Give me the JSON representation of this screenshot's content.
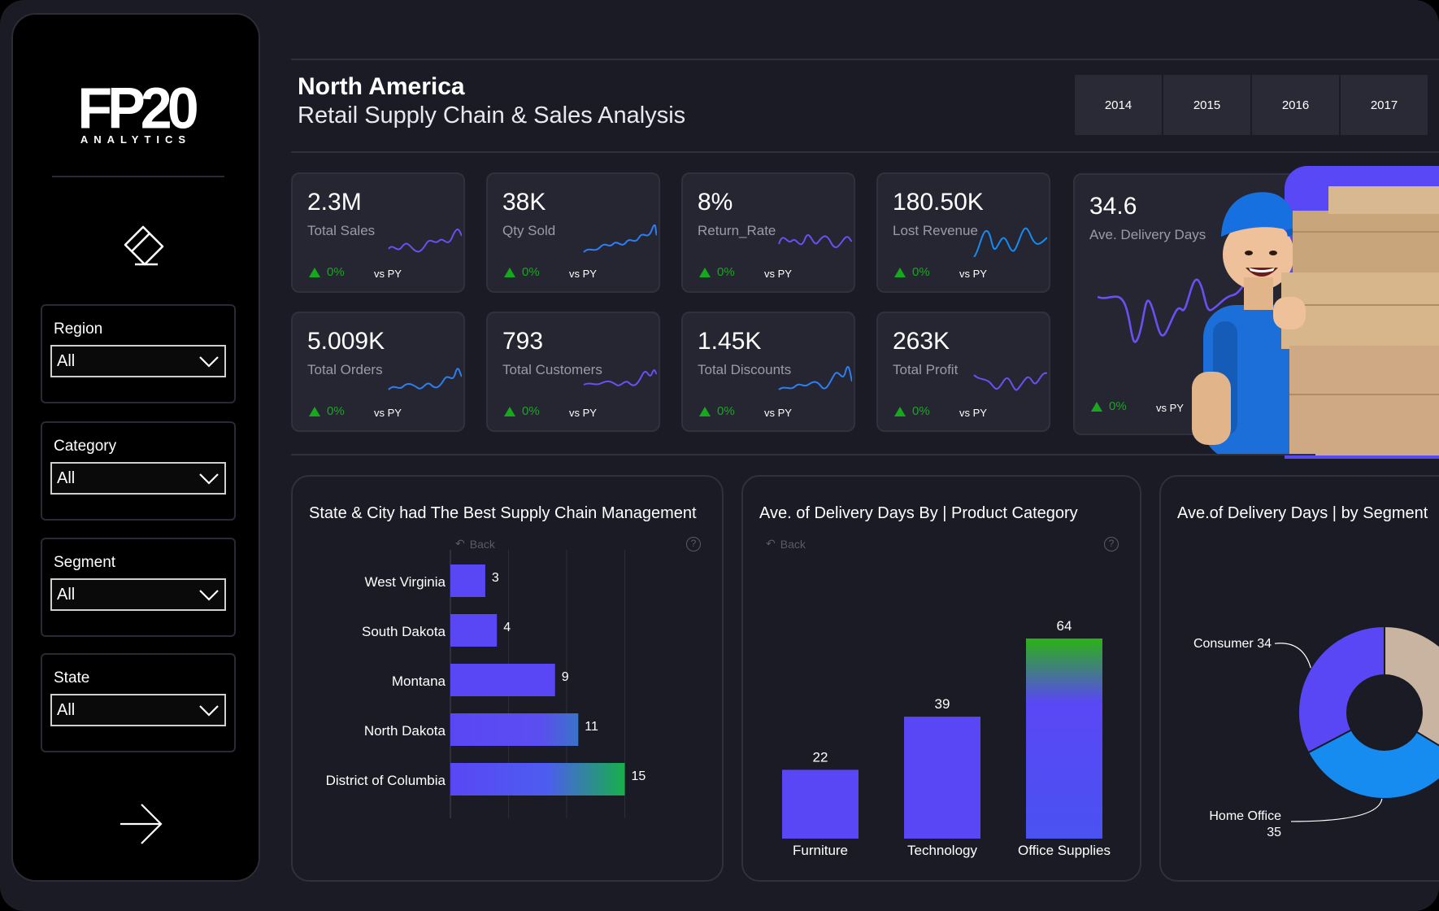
{
  "logo": {
    "main": "FP20",
    "sub": "ANALYTICS"
  },
  "filters": [
    {
      "label": "Region",
      "value": "All"
    },
    {
      "label": "Category",
      "value": "All"
    },
    {
      "label": "Segment",
      "value": "All"
    },
    {
      "label": "State",
      "value": "All"
    }
  ],
  "header": {
    "title": "North America",
    "subtitle": "Retail Supply Chain & Sales Analysis",
    "years": [
      "2014",
      "2015",
      "2016",
      "2017"
    ]
  },
  "kpis": [
    {
      "value": "2.3M",
      "label": "Total Sales",
      "change": "0%",
      "vs": "vs PY"
    },
    {
      "value": "38K",
      "label": "Qty Sold",
      "change": "0%",
      "vs": "vs PY"
    },
    {
      "value": "8%",
      "label": "Return_Rate",
      "change": "0%",
      "vs": "vs PY"
    },
    {
      "value": "180.50K",
      "label": "Lost Revenue",
      "change": "0%",
      "vs": "vs PY"
    },
    {
      "value": "5.009K",
      "label": "Total Orders",
      "change": "0%",
      "vs": "vs PY"
    },
    {
      "value": "793",
      "label": "Total Customers",
      "change": "0%",
      "vs": "vs PY"
    },
    {
      "value": "1.45K",
      "label": "Total Discounts",
      "change": "0%",
      "vs": "vs PY"
    },
    {
      "value": "263K",
      "label": "Total Profit",
      "change": "0%",
      "vs": "vs PY"
    }
  ],
  "kpi_big": {
    "value": "34.6",
    "label": "Ave. Delivery Days",
    "change": "0%",
    "vs": "vs PY"
  },
  "panels": {
    "back_label": "Back",
    "help_label": "?",
    "state": {
      "title": "State & City had The Best Supply Chain Management"
    },
    "category": {
      "title": "Ave. of Delivery Days By | Product Category"
    },
    "segment": {
      "title": "Ave.of Delivery Days | by Segment"
    }
  },
  "colors": {
    "accent": "#5947f5",
    "blue": "#168bf0",
    "green": "#17a81e",
    "tan": "#c8b4a0",
    "card": "#262633"
  },
  "chart_data": [
    {
      "type": "bar",
      "orientation": "horizontal",
      "title": "State & City had The Best Supply Chain Management",
      "categories": [
        "West Virginia",
        "South Dakota",
        "Montana",
        "North Dakota",
        "District of Columbia"
      ],
      "values": [
        3,
        4,
        9,
        11,
        15
      ],
      "xlim": [
        0,
        22
      ]
    },
    {
      "type": "bar",
      "title": "Ave. of Delivery Days By | Product Category",
      "categories": [
        "Furniture",
        "Technology",
        "Office Supplies"
      ],
      "values": [
        22,
        39,
        64
      ],
      "ylim": [
        0,
        64
      ]
    },
    {
      "type": "pie",
      "donut": true,
      "title": "Ave.of Delivery Days | by Segment",
      "slices": [
        {
          "label": "Consumer",
          "value": 34,
          "color": "#5947f5"
        },
        {
          "label": "Home Office",
          "value": 35,
          "color": "#168bf0"
        },
        {
          "label": "",
          "value": 35,
          "color": "#c8b4a0"
        }
      ]
    }
  ]
}
